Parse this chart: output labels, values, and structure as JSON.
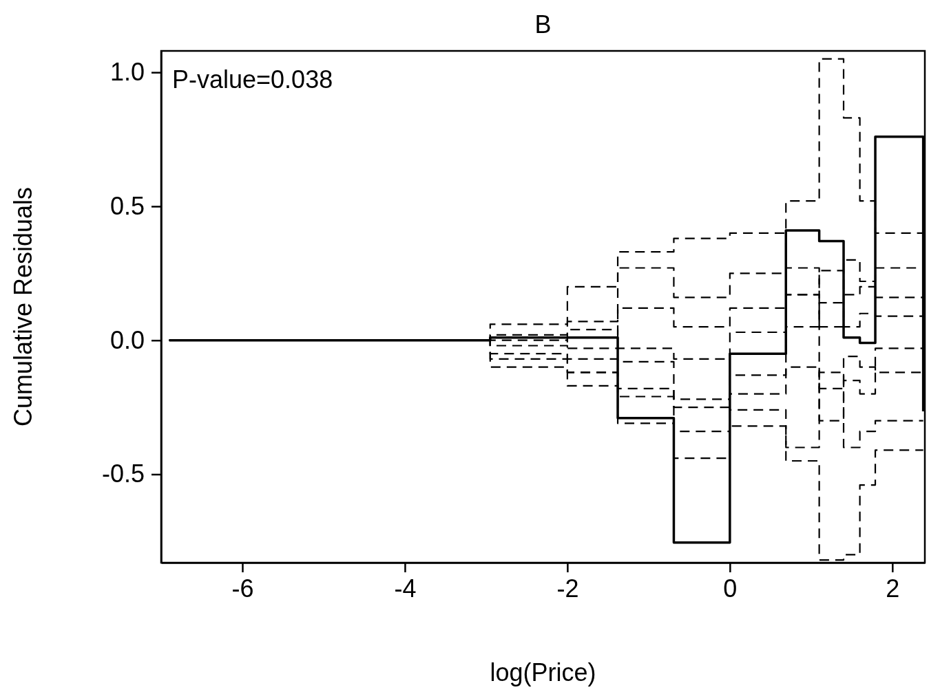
{
  "chart_data": {
    "type": "step",
    "title": "B",
    "xlabel": "log(Price)",
    "ylabel": "Cumulative Residuals",
    "annotations": [
      "P-value=0.038"
    ],
    "x": [
      -6.9,
      -2.95,
      -2.0,
      -1.38,
      -0.69,
      0,
      0.69,
      1.1,
      1.4,
      1.6,
      1.79,
      2.38
    ],
    "xlim": [
      -7,
      2.4
    ],
    "xticks": [
      -6,
      -4,
      -2,
      0,
      2
    ],
    "ylim": [
      -0.83,
      1.08
    ],
    "yticks": [
      -0.5,
      {
        "value": 0,
        "label": "0.0"
      },
      0.5,
      {
        "value": 1,
        "label": "1.0"
      }
    ],
    "grid": false,
    "series": [
      {
        "color": "#000000",
        "line_style": "dashed",
        "values": [
          0,
          0.06,
          0.2,
          0.33,
          0.38,
          0.4,
          0.52,
          1.05,
          0.83,
          0.52,
          0.4,
          0.4
        ]
      },
      {
        "color": "#000000",
        "line_style": "dashed",
        "values": [
          0,
          -0.1,
          -0.17,
          -0.31,
          -0.44,
          -0.32,
          -0.45,
          -0.82,
          -0.8,
          -0.54,
          -0.41,
          -0.41
        ]
      },
      {
        "color": "#000000",
        "line_style": "dashed",
        "values": [
          0,
          0.02,
          0.07,
          0.27,
          0.16,
          0.25,
          0.17,
          0.26,
          0.17,
          0.2,
          0.16,
          0.16
        ]
      },
      {
        "color": "#000000",
        "line_style": "dashed",
        "values": [
          0,
          -0.05,
          -0.12,
          -0.21,
          -0.34,
          -0.26,
          -0.4,
          -0.12,
          -0.4,
          -0.34,
          -0.3,
          -0.3
        ]
      },
      {
        "color": "#000000",
        "line_style": "dashed",
        "values": [
          0,
          0.01,
          -0.03,
          0.12,
          0.05,
          0.12,
          0.27,
          0.05,
          0.3,
          0.22,
          0.27,
          0.27
        ]
      },
      {
        "color": "#000000",
        "line_style": "dashed",
        "values": [
          0,
          -0.02,
          -0.07,
          -0.08,
          -0.22,
          -0.13,
          -0.1,
          -0.18,
          -0.06,
          -0.1,
          -0.12,
          -0.12
        ]
      },
      {
        "color": "#000000",
        "line_style": "dashed",
        "values": [
          0,
          0,
          0.04,
          -0.03,
          -0.07,
          0.03,
          0.05,
          0.14,
          0.05,
          0.1,
          0.09,
          0.09
        ]
      },
      {
        "color": "#000000",
        "line_style": "dashed",
        "values": [
          0,
          -0.07,
          -0.12,
          -0.18,
          -0.25,
          -0.2,
          0.17,
          -0.3,
          -0.15,
          -0.2,
          -0.03,
          -0.03
        ]
      },
      {
        "color": "#000000",
        "line_style": "solid",
        "values": [
          0,
          0.01,
          0.01,
          -0.29,
          -0.755,
          -0.05,
          0.41,
          0.37,
          0.01,
          -0.01,
          0.76,
          -0.265
        ]
      }
    ]
  }
}
